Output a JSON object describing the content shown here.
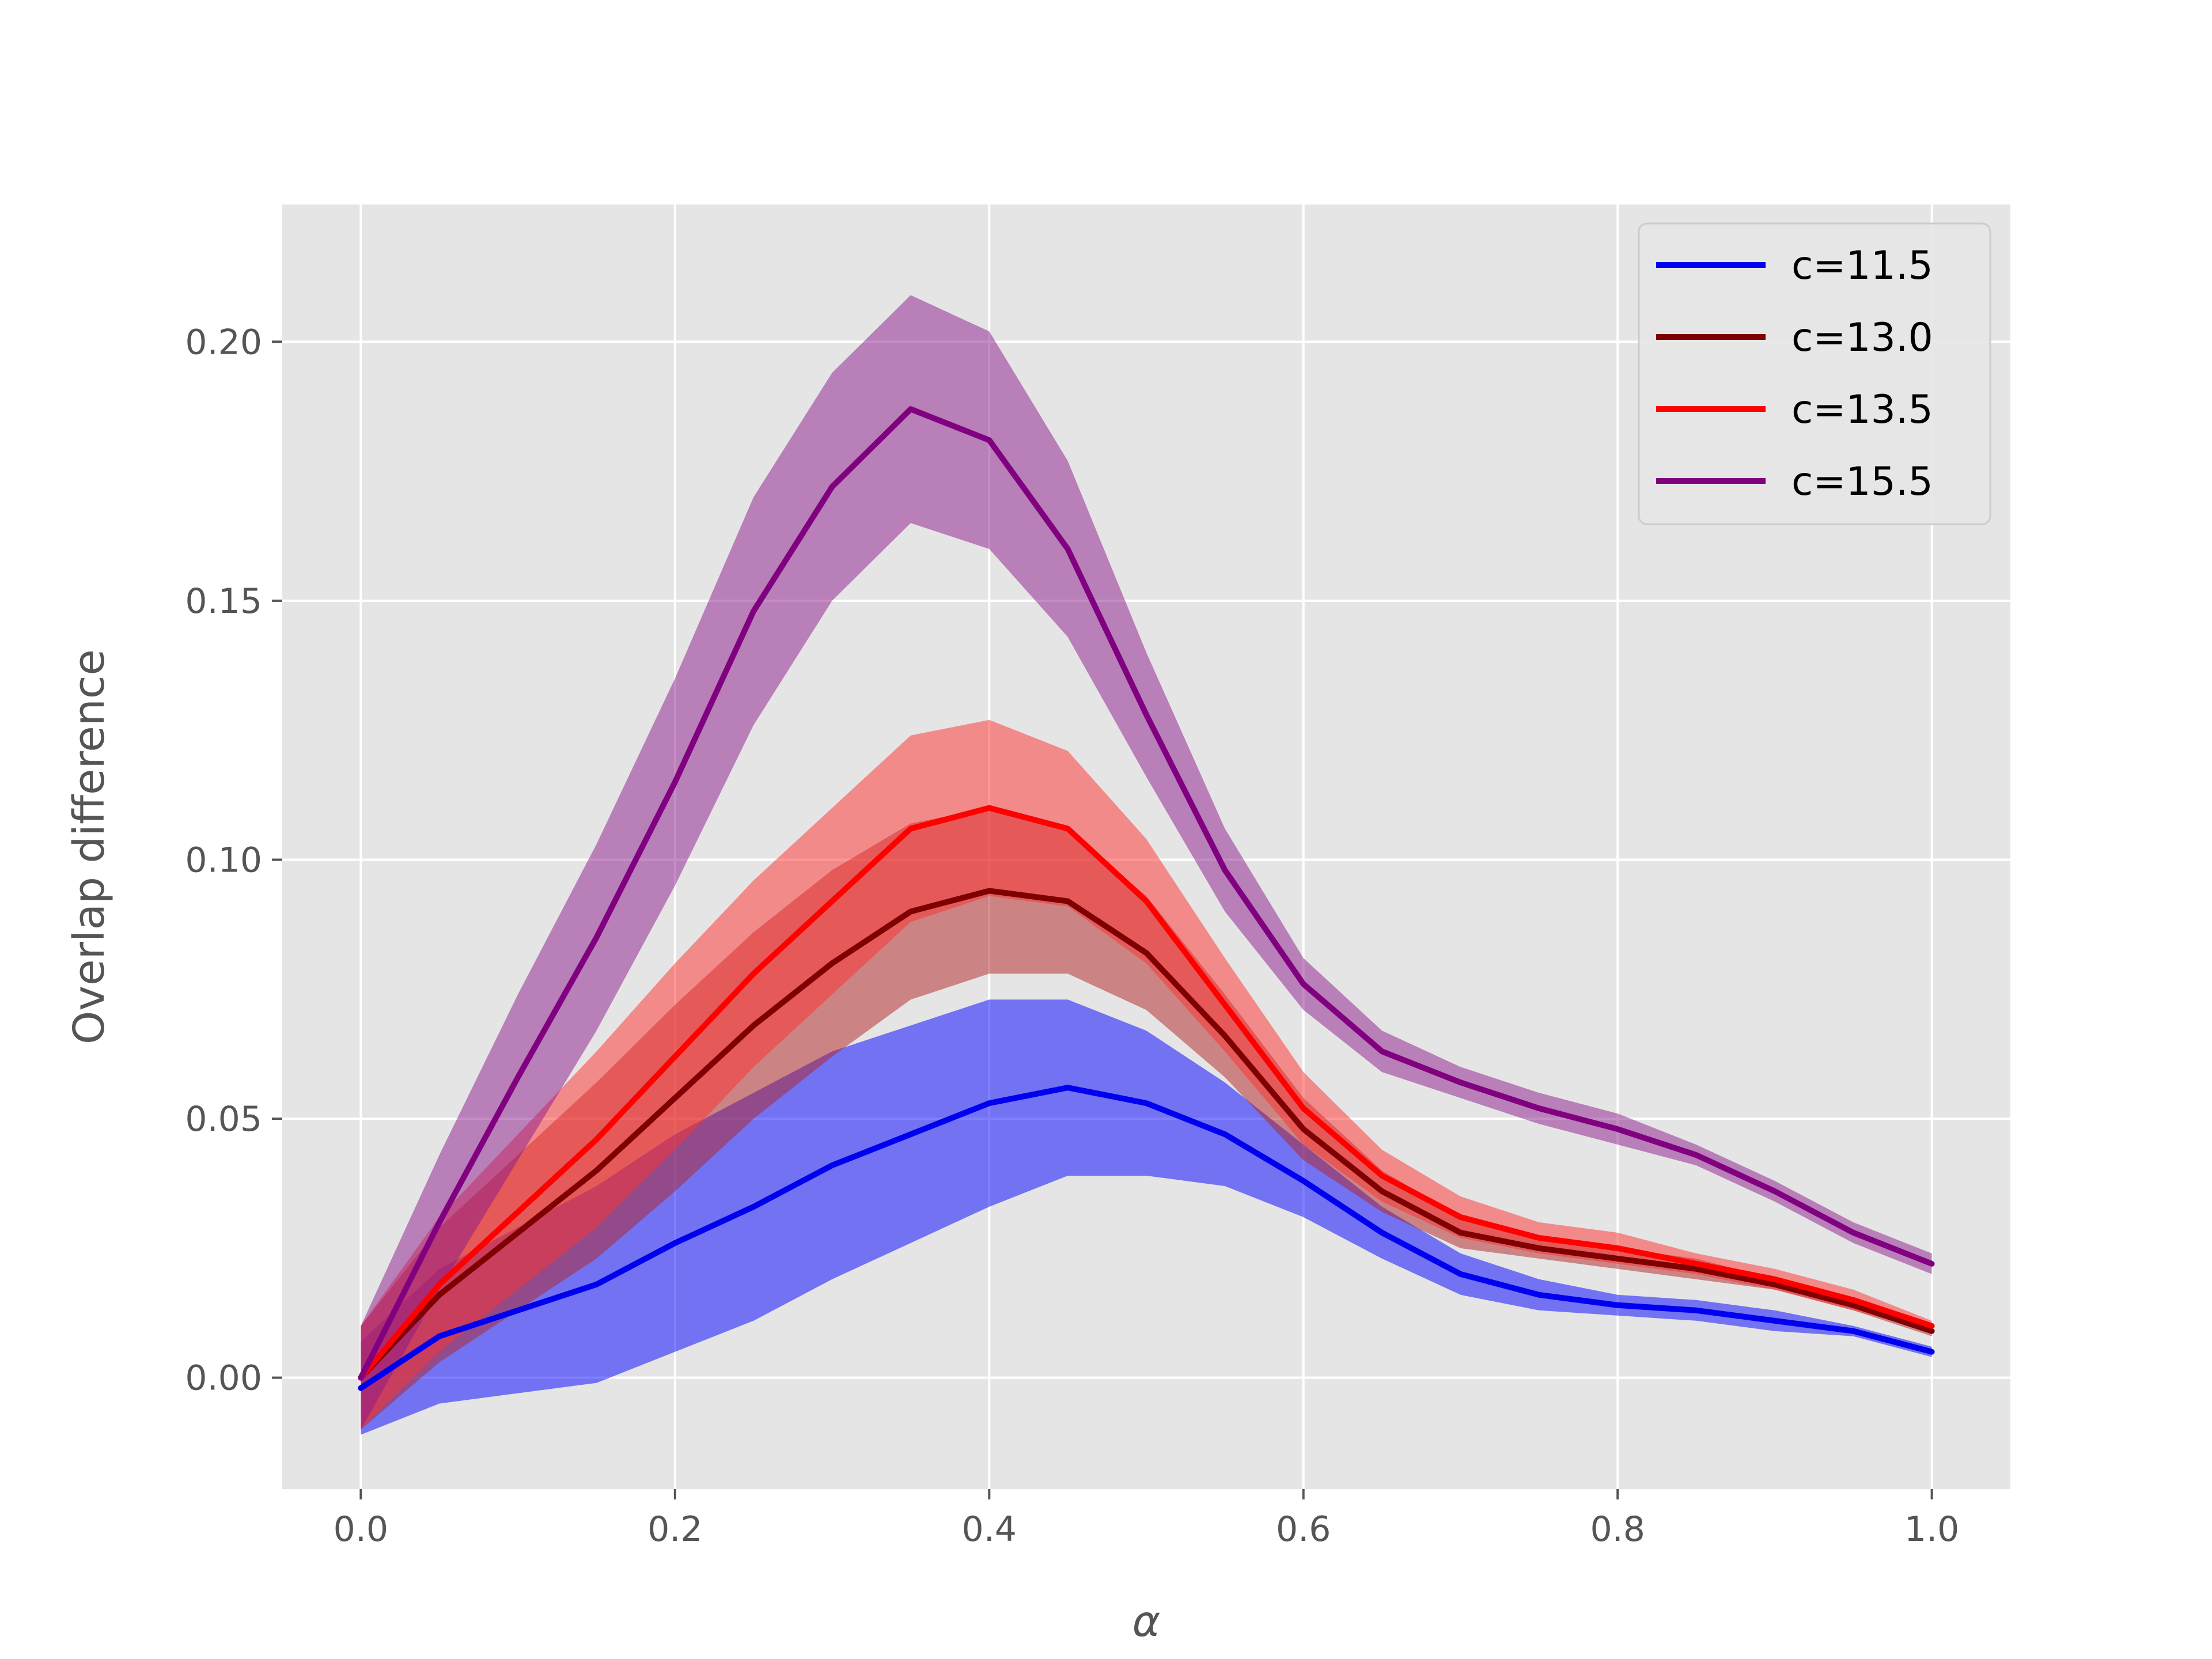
{
  "chart_data": {
    "type": "line",
    "xlabel": "α",
    "ylabel": "Overlap difference",
    "xlim": [
      -0.05,
      1.05
    ],
    "ylim": [
      -0.0215,
      0.2265
    ],
    "xticks": [
      0.0,
      0.2,
      0.4,
      0.6,
      0.8,
      1.0
    ],
    "xtick_labels": [
      "0.0",
      "0.2",
      "0.4",
      "0.6",
      "0.8",
      "1.0"
    ],
    "yticks": [
      0.0,
      0.05,
      0.1,
      0.15,
      0.2
    ],
    "ytick_labels": [
      "0.00",
      "0.05",
      "0.10",
      "0.15",
      "0.20"
    ],
    "grid": true,
    "legend_position": "top-right",
    "shaded_band": "mean ± spread",
    "series": [
      {
        "name": "c=11.5",
        "color": "#0000ee",
        "band_color": "#0000ff",
        "x": [
          0.0,
          0.05,
          0.1,
          0.15,
          0.2,
          0.25,
          0.3,
          0.35,
          0.4,
          0.45,
          0.5,
          0.55,
          0.6,
          0.65,
          0.7,
          0.75,
          0.8,
          0.85,
          0.9,
          0.95,
          1.0
        ],
        "y": [
          -0.002,
          0.008,
          0.013,
          0.018,
          0.026,
          0.033,
          0.041,
          0.047,
          0.053,
          0.056,
          0.053,
          0.047,
          0.038,
          0.028,
          0.02,
          0.016,
          0.014,
          0.013,
          0.011,
          0.009,
          0.005
        ],
        "spread": [
          0.009,
          0.013,
          0.016,
          0.019,
          0.021,
          0.022,
          0.022,
          0.021,
          0.02,
          0.017,
          0.014,
          0.01,
          0.007,
          0.005,
          0.004,
          0.003,
          0.002,
          0.002,
          0.002,
          0.001,
          0.001
        ]
      },
      {
        "name": "c=13.0",
        "color": "#7f0000",
        "band_color": "#b22222",
        "x": [
          0.0,
          0.05,
          0.1,
          0.15,
          0.2,
          0.25,
          0.3,
          0.35,
          0.4,
          0.45,
          0.5,
          0.55,
          0.6,
          0.65,
          0.7,
          0.75,
          0.8,
          0.85,
          0.9,
          0.95,
          1.0
        ],
        "y": [
          0.0,
          0.016,
          0.028,
          0.04,
          0.054,
          0.068,
          0.08,
          0.09,
          0.094,
          0.092,
          0.082,
          0.066,
          0.048,
          0.036,
          0.028,
          0.025,
          0.023,
          0.021,
          0.018,
          0.014,
          0.009
        ],
        "spread": [
          0.01,
          0.013,
          0.015,
          0.017,
          0.018,
          0.018,
          0.018,
          0.017,
          0.016,
          0.014,
          0.011,
          0.008,
          0.006,
          0.004,
          0.003,
          0.002,
          0.002,
          0.002,
          0.001,
          0.001,
          0.001
        ]
      },
      {
        "name": "c=13.5",
        "color": "#ff0000",
        "band_color": "#ff3030",
        "x": [
          0.0,
          0.05,
          0.1,
          0.15,
          0.2,
          0.25,
          0.3,
          0.35,
          0.4,
          0.45,
          0.5,
          0.55,
          0.6,
          0.65,
          0.7,
          0.75,
          0.8,
          0.85,
          0.9,
          0.95,
          1.0
        ],
        "y": [
          0.0,
          0.018,
          0.032,
          0.046,
          0.062,
          0.078,
          0.092,
          0.106,
          0.11,
          0.106,
          0.092,
          0.072,
          0.052,
          0.039,
          0.031,
          0.027,
          0.025,
          0.022,
          0.019,
          0.015,
          0.01
        ],
        "spread": [
          0.01,
          0.013,
          0.015,
          0.017,
          0.018,
          0.018,
          0.018,
          0.018,
          0.017,
          0.015,
          0.012,
          0.009,
          0.007,
          0.005,
          0.004,
          0.003,
          0.003,
          0.002,
          0.002,
          0.002,
          0.001
        ]
      },
      {
        "name": "c=15.5",
        "color": "#800080",
        "band_color": "#8b1a8b",
        "x": [
          0.0,
          0.05,
          0.1,
          0.15,
          0.2,
          0.25,
          0.3,
          0.35,
          0.4,
          0.45,
          0.5,
          0.55,
          0.6,
          0.65,
          0.7,
          0.75,
          0.8,
          0.85,
          0.9,
          0.95,
          1.0
        ],
        "y": [
          0.0,
          0.03,
          0.058,
          0.085,
          0.115,
          0.148,
          0.172,
          0.187,
          0.181,
          0.16,
          0.128,
          0.098,
          0.076,
          0.063,
          0.057,
          0.052,
          0.048,
          0.043,
          0.036,
          0.028,
          0.022
        ],
        "spread": [
          0.01,
          0.013,
          0.016,
          0.018,
          0.02,
          0.022,
          0.022,
          0.022,
          0.021,
          0.017,
          0.012,
          0.008,
          0.005,
          0.004,
          0.003,
          0.003,
          0.003,
          0.002,
          0.002,
          0.002,
          0.002
        ]
      }
    ]
  }
}
